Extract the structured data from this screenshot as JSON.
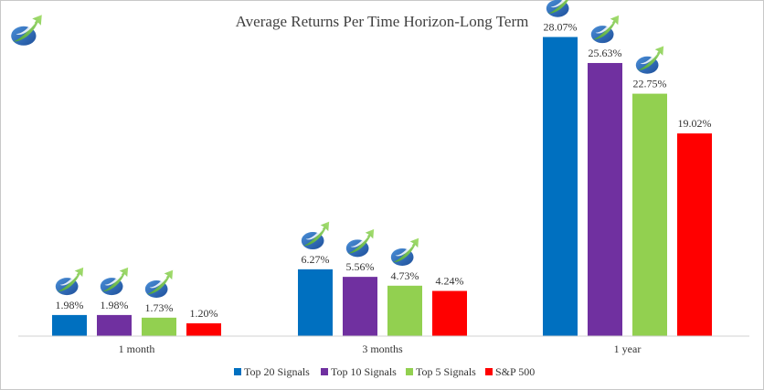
{
  "chart_data": {
    "type": "bar",
    "title": "Average Returns Per Time Horizon-Long Term",
    "categories": [
      "1 month",
      "3 months",
      "1 year"
    ],
    "series": [
      {
        "name": "Top 20 Signals",
        "color": "#0070c0",
        "values": [
          1.98,
          6.27,
          28.07
        ],
        "labels": [
          "1.98%",
          "6.27%",
          "28.07%"
        ]
      },
      {
        "name": "Top 10 Signals",
        "color": "#7030a0",
        "values": [
          1.98,
          5.56,
          25.63
        ],
        "labels": [
          "1.98%",
          "5.56%",
          "25.63%"
        ]
      },
      {
        "name": "Top 5 Signals",
        "color": "#92d050",
        "values": [
          1.73,
          4.73,
          22.75
        ],
        "labels": [
          "1.73%",
          "4.73%",
          "22.75%"
        ]
      },
      {
        "name": "S&P 500",
        "color": "#ff0000",
        "values": [
          1.2,
          4.24,
          19.02
        ],
        "labels": [
          "1.20%",
          "4.24%",
          "19.02%"
        ]
      }
    ],
    "logo_series": [
      "Top 20 Signals",
      "Top 10 Signals",
      "Top 5 Signals"
    ],
    "ylim": [
      0,
      30
    ],
    "grid": false,
    "legend": "bottom",
    "xlabel": "",
    "ylabel": ""
  }
}
